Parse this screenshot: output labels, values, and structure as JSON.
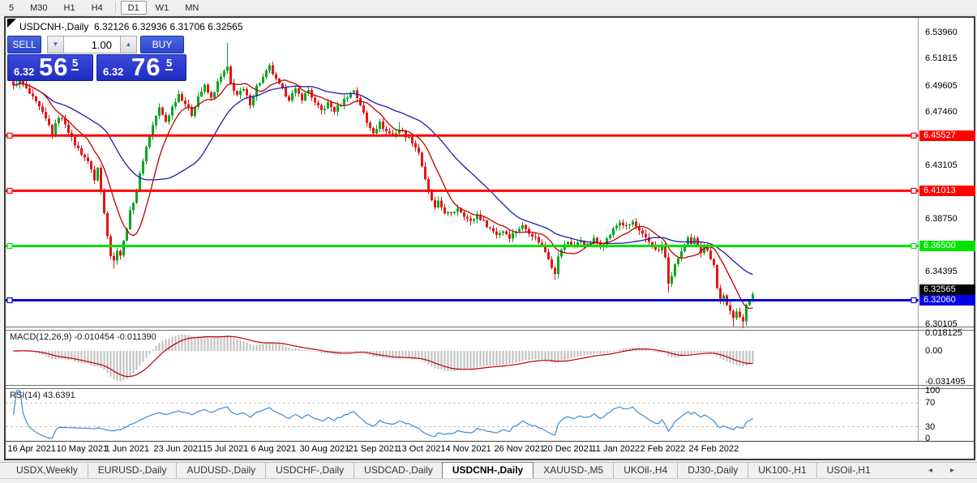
{
  "toolbar": {
    "timeframes": [
      {
        "label": "5",
        "active": false
      },
      {
        "label": "M30",
        "active": false
      },
      {
        "label": "H1",
        "active": false
      },
      {
        "label": "H4",
        "active": false
      },
      {
        "label": "D1",
        "active": true
      },
      {
        "label": "W1",
        "active": false
      },
      {
        "label": "MN",
        "active": false
      }
    ]
  },
  "chart": {
    "title": "USDCNH-,Daily",
    "ohlc_text": "6.32126 6.32936 6.31706 6.32565",
    "trade_panel": {
      "sell_button": "SELL",
      "buy_button": "BUY",
      "volume_value": "1.00",
      "spin_down_icon": "▼",
      "spin_up_icon": "▲",
      "sell_price_small": "6.32",
      "sell_price_big": "56",
      "sell_price_sup": "5",
      "buy_price_small": "6.32",
      "buy_price_big": "76",
      "buy_price_sup": "5"
    }
  },
  "chart_data": {
    "type": "candlestick",
    "symbol": "USDCNH",
    "timeframe": "Daily",
    "ohlc_display": {
      "open": 6.32126,
      "high": 6.32936,
      "low": 6.31706,
      "close": 6.32565
    },
    "ylim": [
      6.2983,
      6.5515
    ],
    "y_ticks": [
      "6.53960",
      "6.51815",
      "6.49605",
      "6.47460",
      "6.43105",
      "6.38750",
      "6.34395",
      "6.30105"
    ],
    "y_tick_values": [
      6.5396,
      6.51815,
      6.49605,
      6.4746,
      6.43105,
      6.3875,
      6.34395,
      6.30105
    ],
    "x_ticks": [
      "16 Apr 2021",
      "10 May 2021",
      "1 Jun 2021",
      "23 Jun 2021",
      "15 Jul 2021",
      "6 Aug 2021",
      "30 Aug 2021",
      "21 Sep 2021",
      "13 Oct 2021",
      "4 Nov 2021",
      "26 Nov 2021",
      "20 Dec 2021",
      "11 Jan 2022",
      "2 Feb 2022",
      "24 Feb 2022"
    ],
    "bars": 229,
    "bars_per_tick": 15,
    "grid": false,
    "legend": "none",
    "up_color": "#00a81e",
    "down_color": "#e81414",
    "close_keypoints": [
      [
        0,
        6.4965
      ],
      [
        2,
        6.5
      ],
      [
        5,
        6.4895
      ],
      [
        8,
        6.478
      ],
      [
        11,
        6.4635
      ],
      [
        12,
        6.457
      ],
      [
        14,
        6.471
      ],
      [
        16,
        6.4655
      ],
      [
        18,
        6.4525
      ],
      [
        20,
        6.444
      ],
      [
        22,
        6.4375
      ],
      [
        24,
        6.4285
      ],
      [
        25,
        6.4185
      ],
      [
        26,
        6.4285
      ],
      [
        27,
        6.4105
      ],
      [
        28,
        6.3935
      ],
      [
        29,
        6.3745
      ],
      [
        30,
        6.3575
      ],
      [
        31,
        6.3525
      ],
      [
        32,
        6.3625
      ],
      [
        33,
        6.3575
      ],
      [
        34,
        6.3685
      ],
      [
        36,
        6.3925
      ],
      [
        38,
        6.4105
      ],
      [
        40,
        6.4355
      ],
      [
        42,
        6.4555
      ],
      [
        44,
        6.4715
      ],
      [
        45,
        6.4775
      ],
      [
        47,
        6.4665
      ],
      [
        49,
        6.4785
      ],
      [
        51,
        6.4895
      ],
      [
        53,
        6.4815
      ],
      [
        55,
        6.4725
      ],
      [
        57,
        6.4875
      ],
      [
        59,
        6.4955
      ],
      [
        61,
        6.4855
      ],
      [
        63,
        6.4985
      ],
      [
        65,
        6.5075
      ],
      [
        66,
        6.5105
      ],
      [
        67,
        6.4975
      ],
      [
        69,
        6.4885
      ],
      [
        71,
        6.4925
      ],
      [
        73,
        6.4815
      ],
      [
        75,
        6.4955
      ],
      [
        77,
        6.5025
      ],
      [
        79,
        6.5115
      ],
      [
        81,
        6.5005
      ],
      [
        83,
        6.4925
      ],
      [
        85,
        6.4855
      ],
      [
        87,
        6.4925
      ],
      [
        89,
        6.4855
      ],
      [
        91,
        6.4925
      ],
      [
        93,
        6.4815
      ],
      [
        95,
        6.4755
      ],
      [
        97,
        6.4815
      ],
      [
        99,
        6.4755
      ],
      [
        101,
        6.4815
      ],
      [
        103,
        6.4875
      ],
      [
        105,
        6.4925
      ],
      [
        107,
        6.4805
      ],
      [
        109,
        6.4655
      ],
      [
        111,
        6.4585
      ],
      [
        113,
        6.4655
      ],
      [
        115,
        6.4585
      ],
      [
        117,
        6.4555
      ],
      [
        119,
        6.4605
      ],
      [
        121,
        6.4555
      ],
      [
        123,
        6.4505
      ],
      [
        125,
        6.4415
      ],
      [
        126,
        6.4305
      ],
      [
        127,
        6.4185
      ],
      [
        128,
        6.4085
      ],
      [
        129,
        6.4025
      ],
      [
        130,
        6.3955
      ],
      [
        131,
        6.4005
      ],
      [
        133,
        6.3925
      ],
      [
        135,
        6.3905
      ],
      [
        137,
        6.3965
      ],
      [
        139,
        6.3905
      ],
      [
        141,
        6.3845
      ],
      [
        143,
        6.3905
      ],
      [
        145,
        6.3845
      ],
      [
        147,
        6.3795
      ],
      [
        149,
        6.3745
      ],
      [
        151,
        6.3775
      ],
      [
        153,
        6.3725
      ],
      [
        155,
        6.3775
      ],
      [
        157,
        6.3815
      ],
      [
        159,
        6.3765
      ],
      [
        161,
        6.3715
      ],
      [
        163,
        6.3655
      ],
      [
        164,
        6.3605
      ],
      [
        165,
        6.3555
      ],
      [
        166,
        6.3485
      ],
      [
        167,
        6.3435
      ],
      [
        168,
        6.3555
      ],
      [
        169,
        6.3625
      ],
      [
        171,
        6.3685
      ],
      [
        173,
        6.3645
      ],
      [
        175,
        6.3695
      ],
      [
        177,
        6.3655
      ],
      [
        179,
        6.3705
      ],
      [
        181,
        6.3655
      ],
      [
        183,
        6.3705
      ],
      [
        185,
        6.3785
      ],
      [
        187,
        6.3845
      ],
      [
        189,
        6.3805
      ],
      [
        191,
        6.3845
      ],
      [
        193,
        6.3765
      ],
      [
        195,
        6.3705
      ],
      [
        197,
        6.3655
      ],
      [
        199,
        6.3605
      ],
      [
        200,
        6.3655
      ],
      [
        201,
        6.3555
      ],
      [
        202,
        6.3335
      ],
      [
        203,
        6.3415
      ],
      [
        204,
        6.3485
      ],
      [
        205,
        6.3555
      ],
      [
        206,
        6.3605
      ],
      [
        207,
        6.3655
      ],
      [
        208,
        6.3705
      ],
      [
        209,
        6.3655
      ],
      [
        210,
        6.3705
      ],
      [
        211,
        6.3655
      ],
      [
        212,
        6.3605
      ],
      [
        213,
        6.3655
      ],
      [
        214,
        6.3605
      ],
      [
        215,
        6.3555
      ],
      [
        216,
        6.3505
      ],
      [
        217,
        6.3305
      ],
      [
        218,
        6.3205
      ],
      [
        219,
        6.3255
      ],
      [
        220,
        6.3155
      ],
      [
        221,
        6.3105
      ],
      [
        222,
        6.3055
      ],
      [
        223,
        6.3125
      ],
      [
        224,
        6.3085
      ],
      [
        225,
        6.3035
      ],
      [
        226,
        6.3155
      ],
      [
        227,
        6.3205
      ],
      [
        228,
        6.32565
      ]
    ],
    "wick_spikes": [
      {
        "bar": 66,
        "high": 0.017
      },
      {
        "bar": 119,
        "high": 0.004
      },
      {
        "bar": 31,
        "low": 0.003
      },
      {
        "bar": 167,
        "low": 0.004
      },
      {
        "bar": 202,
        "low": 0.005
      },
      {
        "bar": 222,
        "low": 0.004
      },
      {
        "bar": 225,
        "low": 0.003
      }
    ],
    "hlines": [
      {
        "price": 6.45527,
        "label": "6.45527",
        "color": "#ff0000"
      },
      {
        "price": 6.41013,
        "label": "6.41013",
        "color": "#ff0000"
      },
      {
        "price": 6.365,
        "label": "6.36500",
        "color": "#00e400"
      },
      {
        "price": 6.3206,
        "label": "6.32060",
        "color": "#0000e6"
      }
    ],
    "current_price": {
      "value": 6.32565,
      "label": "6.32565",
      "bg": "#000000"
    },
    "ma_fast": {
      "period": 10,
      "color": "#c00000"
    },
    "ma_slow": {
      "period": 30,
      "color": "#1c1cb4"
    },
    "macd": {
      "label": "MACD(12,26,9) -0.010454 -0.011390",
      "params": [
        12,
        26,
        9
      ],
      "value": -0.010454,
      "signal_value": -0.01139,
      "axis_ticks": [
        "0.018125",
        "0.00",
        "-0.031495"
      ],
      "axis_values": [
        0.018125,
        0,
        -0.031495
      ],
      "hist_color": "#bdbdbd",
      "line_color": "#c00000"
    },
    "rsi": {
      "label": "RSI(14) 43.6391",
      "period": 14,
      "value": 43.6391,
      "axis_ticks": [
        "100",
        "70",
        "30",
        "0"
      ],
      "axis_values": [
        100,
        70,
        30,
        0
      ],
      "levels": [
        70,
        30
      ],
      "line_color": "#3c8bd9"
    }
  },
  "tabs": {
    "items": [
      {
        "label": "USDX,Weekly",
        "active": false
      },
      {
        "label": "EURUSD-,Daily",
        "active": false
      },
      {
        "label": "AUDUSD-,Daily",
        "active": false
      },
      {
        "label": "USDCHF-,Daily",
        "active": false
      },
      {
        "label": "USDCAD-,Daily",
        "active": false
      },
      {
        "label": "USDCNH-,Daily",
        "active": true
      },
      {
        "label": "XAUUSD-,M5",
        "active": false
      },
      {
        "label": "UKOil-,H4",
        "active": false
      },
      {
        "label": "DJ30-,Daily",
        "active": false
      },
      {
        "label": "UK100-,H1",
        "active": false
      },
      {
        "label": "USOil-,H1",
        "active": false
      }
    ],
    "scroll_left_icon": "◂",
    "scroll_right_icon": "▸"
  }
}
